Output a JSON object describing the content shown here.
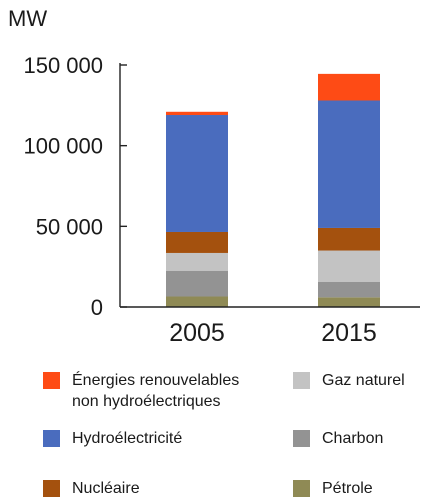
{
  "chart_data": {
    "type": "bar",
    "stacked": true,
    "ylabel": "MW",
    "categories": [
      "2005",
      "2015"
    ],
    "ylim": [
      0,
      150000
    ],
    "yticks": [
      0,
      50000,
      100000,
      150000
    ],
    "ytick_labels": [
      "0",
      "50 000",
      "100 000",
      "150 000"
    ],
    "grid": false,
    "legend_position": "bottom",
    "series": [
      {
        "name": "Pétrole",
        "color": "#8f8a55",
        "values": [
          6500,
          6000
        ]
      },
      {
        "name": "Charbon",
        "color": "#939393",
        "values": [
          16000,
          9500
        ]
      },
      {
        "name": "Gaz naturel",
        "color": "#c3c3c3",
        "values": [
          11000,
          19500
        ]
      },
      {
        "name": "Nucléaire",
        "color": "#a4510e",
        "values": [
          13000,
          14000
        ]
      },
      {
        "name": "Hydroélectricité",
        "color": "#4a6cbe",
        "values": [
          72500,
          79000
        ]
      },
      {
        "name": "Énergies renouvelables non hydroélectriques",
        "color": "#fe4b15",
        "values": [
          2000,
          16500
        ]
      }
    ]
  },
  "legend": [
    {
      "lines": [
        "Énergies renouvelables",
        "non hydroélectriques"
      ],
      "color": "#fe4b15"
    },
    {
      "lines": [
        "Gaz naturel"
      ],
      "color": "#c3c3c3"
    },
    {
      "lines": [
        "Hydroélectricité"
      ],
      "color": "#4a6cbe"
    },
    {
      "lines": [
        "Charbon"
      ],
      "color": "#939393"
    },
    {
      "lines": [
        "Nucléaire"
      ],
      "color": "#a4510e"
    },
    {
      "lines": [
        "Pétrole"
      ],
      "color": "#8f8a55"
    }
  ]
}
